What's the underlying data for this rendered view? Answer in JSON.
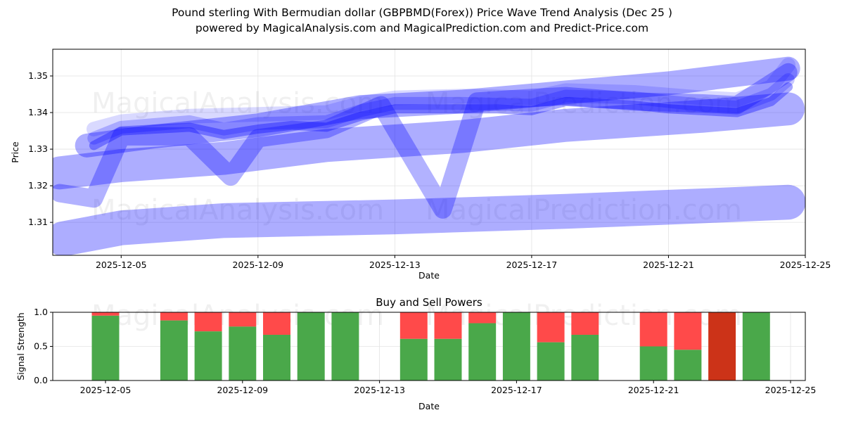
{
  "title_line1": "Pound sterling With Bermudian dollar (GBPBMD(Forex)) Price Wave Trend Analysis (Dec 25 )",
  "title_line2": "powered by MagicalAnalysis.com and MagicalPrediction.com and Predict-Price.com",
  "watermarks": [
    "MagicalAnalysis.com",
    "MagicalPrediction.com"
  ],
  "chart_data": [
    {
      "type": "line",
      "title": "",
      "xlabel": "Date",
      "ylabel": "Price",
      "x_range": [
        "2025-12-03",
        "2025-12-25"
      ],
      "ylim": [
        1.301,
        1.3573
      ],
      "xticks": [
        "2025-12-05",
        "2025-12-09",
        "2025-12-13",
        "2025-12-17",
        "2025-12-21",
        "2025-12-25"
      ],
      "yticks": [
        "1.31",
        "1.32",
        "1.33",
        "1.34",
        "1.35"
      ],
      "color": "#0000ff",
      "series": [
        {
          "name": "wave-low",
          "width": 0.0095,
          "opacity": 0.32,
          "points": [
            [
              0.3,
              1.3055
            ],
            [
              2,
              1.3085
            ],
            [
              5,
              1.3105
            ],
            [
              10,
              1.3115
            ],
            [
              15,
              1.313
            ],
            [
              19,
              1.3145
            ],
            [
              21.5,
              1.3155
            ]
          ]
        },
        {
          "name": "wave-mid",
          "width": 0.009,
          "opacity": 0.32,
          "points": [
            [
              0.2,
              1.3235
            ],
            [
              2,
              1.3255
            ],
            [
              5,
              1.3275
            ],
            [
              8,
              1.331
            ],
            [
              12,
              1.3335
            ],
            [
              15,
              1.3365
            ],
            [
              19,
              1.339
            ],
            [
              21.5,
              1.341
            ]
          ]
        },
        {
          "name": "wave-high",
          "width": 0.0065,
          "opacity": 0.32,
          "points": [
            [
              1,
              1.331
            ],
            [
              3,
              1.3335
            ],
            [
              6,
              1.3365
            ],
            [
              9,
              1.3415
            ],
            [
              12,
              1.343
            ],
            [
              15,
              1.3455
            ],
            [
              18,
              1.348
            ],
            [
              21.5,
              1.352
            ]
          ]
        },
        {
          "name": "wave-dip",
          "width": 0.005,
          "opacity": 0.3,
          "points": [
            [
              0.2,
              1.318
            ],
            [
              1.2,
              1.3165
            ],
            [
              2,
              1.3335
            ],
            [
              4,
              1.3335
            ],
            [
              5.2,
              1.3225
            ],
            [
              6,
              1.333
            ],
            [
              8,
              1.3355
            ],
            [
              9.6,
              1.342
            ],
            [
              11.4,
              1.3135
            ],
            [
              12.4,
              1.343
            ],
            [
              14,
              1.344
            ],
            [
              15,
              1.3445
            ],
            [
              17,
              1.343
            ],
            [
              19,
              1.3425
            ],
            [
              20,
              1.342
            ],
            [
              21.5,
              1.351
            ]
          ]
        },
        {
          "name": "wave-core-1",
          "width": 0.0025,
          "opacity": 0.35,
          "points": [
            [
              1.2,
              1.331
            ],
            [
              2,
              1.335
            ],
            [
              3,
              1.3355
            ],
            [
              4,
              1.336
            ],
            [
              5,
              1.334
            ],
            [
              6,
              1.3355
            ],
            [
              7,
              1.3365
            ],
            [
              8,
              1.336
            ],
            [
              9,
              1.339
            ],
            [
              10,
              1.341
            ],
            [
              11,
              1.341
            ],
            [
              12,
              1.341
            ],
            [
              13,
              1.341
            ],
            [
              14,
              1.3405
            ],
            [
              15,
              1.343
            ],
            [
              16,
              1.3425
            ],
            [
              17,
              1.342
            ],
            [
              18,
              1.341
            ],
            [
              19,
              1.3405
            ],
            [
              20,
              1.34
            ],
            [
              21,
              1.343
            ],
            [
              21.5,
              1.347
            ]
          ]
        },
        {
          "name": "wave-core-2",
          "width": 0.0035,
          "opacity": 0.22,
          "points": [
            [
              1.2,
              1.333
            ],
            [
              2,
              1.336
            ],
            [
              4,
              1.3375
            ],
            [
              5,
              1.3355
            ],
            [
              6,
              1.337
            ],
            [
              8,
              1.3375
            ],
            [
              9,
              1.3405
            ],
            [
              10,
              1.3425
            ],
            [
              12,
              1.3425
            ],
            [
              14,
              1.342
            ],
            [
              15,
              1.3445
            ],
            [
              17,
              1.344
            ],
            [
              19,
              1.342
            ],
            [
              20,
              1.3415
            ],
            [
              21,
              1.345
            ],
            [
              21.5,
              1.349
            ]
          ]
        },
        {
          "name": "wave-core-3",
          "width": 0.004,
          "opacity": 0.15,
          "points": [
            [
              1.2,
              1.3355
            ],
            [
              2,
              1.3375
            ],
            [
              4,
              1.339
            ],
            [
              6,
              1.3395
            ],
            [
              8,
              1.34
            ],
            [
              9,
              1.3425
            ],
            [
              10,
              1.344
            ],
            [
              12,
              1.3445
            ],
            [
              14,
              1.344
            ],
            [
              15,
              1.346
            ],
            [
              17,
              1.3455
            ],
            [
              19,
              1.344
            ],
            [
              20,
              1.3435
            ],
            [
              21,
              1.347
            ],
            [
              21.5,
              1.353
            ]
          ]
        }
      ]
    },
    {
      "type": "bar",
      "title": "Buy and Sell Powers",
      "xlabel": "Date",
      "ylabel": "Signal Strength",
      "x_range": [
        "2025-12-03.46",
        "2025-12-25.4"
      ],
      "ylim": [
        0,
        1.0
      ],
      "xticks": [
        "2025-12-05",
        "2025-12-09",
        "2025-12-13",
        "2025-12-17",
        "2025-12-21",
        "2025-12-25"
      ],
      "yticks": [
        "0.0",
        "0.5",
        "1.0"
      ],
      "buy_color": "#4aa84a",
      "sell_color": "#ff4a4a",
      "strong_sell_color": "#cc3318",
      "bars": [
        {
          "date": "2025-12-05",
          "day": 2,
          "buy": 0.95
        },
        {
          "date": "2025-12-07",
          "day": 4,
          "buy": 0.88
        },
        {
          "date": "2025-12-08",
          "day": 5,
          "buy": 0.72
        },
        {
          "date": "2025-12-09",
          "day": 6,
          "buy": 0.79
        },
        {
          "date": "2025-12-10",
          "day": 7,
          "buy": 0.67
        },
        {
          "date": "2025-12-11",
          "day": 8,
          "buy": 1.0
        },
        {
          "date": "2025-12-12",
          "day": 9,
          "buy": 1.0
        },
        {
          "date": "2025-12-14",
          "day": 11,
          "buy": 0.61
        },
        {
          "date": "2025-12-15",
          "day": 12,
          "buy": 0.61
        },
        {
          "date": "2025-12-16",
          "day": 13,
          "buy": 0.84
        },
        {
          "date": "2025-12-17",
          "day": 14,
          "buy": 1.0
        },
        {
          "date": "2025-12-18",
          "day": 15,
          "buy": 0.56
        },
        {
          "date": "2025-12-19",
          "day": 16,
          "buy": 0.67
        },
        {
          "date": "2025-12-21",
          "day": 18,
          "buy": 0.5
        },
        {
          "date": "2025-12-22",
          "day": 19,
          "buy": 0.45
        },
        {
          "date": "2025-12-23",
          "day": 20,
          "buy": 0.0,
          "strong_sell": true
        },
        {
          "date": "2025-12-24",
          "day": 21,
          "buy": 1.0
        }
      ]
    }
  ]
}
